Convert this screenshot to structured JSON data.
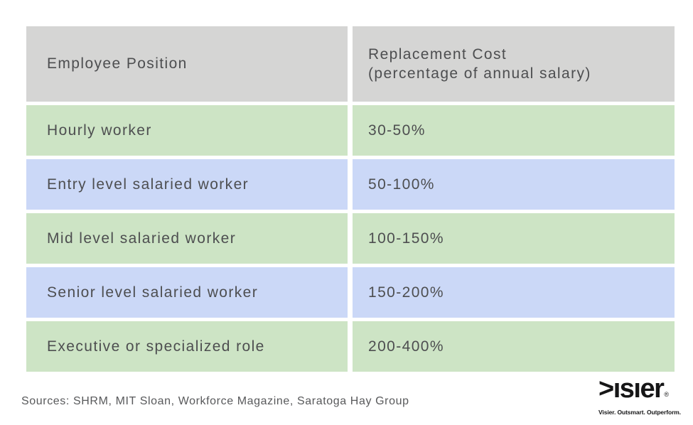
{
  "colors": {
    "header_bg": "#d5d5d4",
    "row_green": "#cde4c5",
    "row_blue": "#cbd8f7",
    "text": "#4d4e50",
    "source_text": "#58595b",
    "logo_color": "#161617",
    "page_bg": "#ffffff"
  },
  "table": {
    "headers": {
      "position": "Employee Position",
      "cost_line1": "Replacement Cost",
      "cost_line2": "(percentage of annual salary)"
    },
    "rows": [
      {
        "position": "Hourly worker",
        "cost": "30-50%"
      },
      {
        "position": "Entry level salaried worker",
        "cost": "50-100%"
      },
      {
        "position": "Mid level salaried worker",
        "cost": "100-150%"
      },
      {
        "position": "Senior level salaried worker",
        "cost": "150-200%"
      },
      {
        "position": "Executive or specialized role",
        "cost": "200-400%"
      }
    ]
  },
  "footer": {
    "sources": "Sources: SHRM, MIT Sloan, Workforce Magazine, Saratoga Hay Group",
    "logo_text": ">ısıer",
    "logo_registered": "®",
    "tagline": "Visier. Outsmart. Outperform."
  },
  "chart_data": {
    "type": "table",
    "title": "Replacement cost by employee position",
    "columns": [
      "Employee Position",
      "Replacement Cost (percentage of annual salary)"
    ],
    "rows": [
      [
        "Hourly worker",
        "30-50%"
      ],
      [
        "Entry level salaried worker",
        "50-100%"
      ],
      [
        "Mid level salaried worker",
        "100-150%"
      ],
      [
        "Senior level salaried worker",
        "150-200%"
      ],
      [
        "Executive or specialized role",
        "200-400%"
      ]
    ],
    "row_colors": [
      "green",
      "blue",
      "green",
      "blue",
      "green"
    ],
    "source_note": "Sources: SHRM, MIT Sloan, Workforce Magazine, Saratoga Hay Group",
    "legend_position": "none",
    "grid": false
  }
}
